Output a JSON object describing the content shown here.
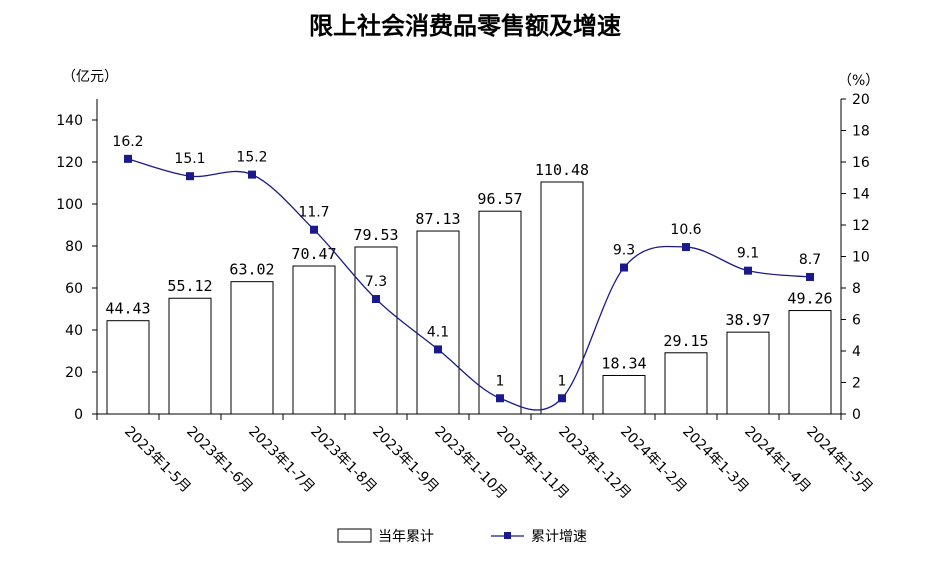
{
  "chart_data": {
    "type": "bar+line",
    "title": "限上社会消费品零售额及增速",
    "left_unit": "（亿元）",
    "right_unit": "（%）",
    "categories": [
      "2023年1-5月",
      "2023年1-6月",
      "2023年1-7月",
      "2023年1-8月",
      "2023年1-9月",
      "2023年1-10月",
      "2023年1-11月",
      "2023年1-12月",
      "2024年1-2月",
      "2024年1-3月",
      "2024年1-4月",
      "2024年1-5月"
    ],
    "bar_series": {
      "name": "当年累计",
      "values": [
        44.43,
        55.12,
        63.02,
        70.47,
        79.53,
        87.13,
        96.57,
        110.48,
        18.34,
        29.15,
        38.97,
        49.26
      ],
      "labels": [
        "44.43",
        "55.12",
        "63.02",
        "70.47",
        "79.53",
        "87.13",
        "96.57",
        "110.48",
        "18.34",
        "29.15",
        "38.97",
        "49.26"
      ]
    },
    "line_series": {
      "name": "累计增速",
      "values": [
        16.2,
        15.1,
        15.2,
        11.7,
        7.3,
        4.1,
        1,
        1,
        9.3,
        10.6,
        9.1,
        8.7
      ],
      "labels": [
        "16.2",
        "15.1",
        "15.2",
        "11.7",
        "7.3",
        "4.1",
        "1",
        "1",
        "9.3",
        "10.6",
        "9.1",
        "8.7"
      ],
      "color": "#1a1a8c"
    },
    "ylim_left": [
      0,
      150
    ],
    "yticks_left": [
      0,
      20,
      40,
      60,
      80,
      100,
      120,
      140
    ],
    "ylim_right": [
      0,
      20
    ],
    "yticks_right": [
      0,
      2,
      4,
      6,
      8,
      10,
      12,
      14,
      16,
      18,
      20
    ],
    "grid": false,
    "legend_position": "bottom"
  }
}
